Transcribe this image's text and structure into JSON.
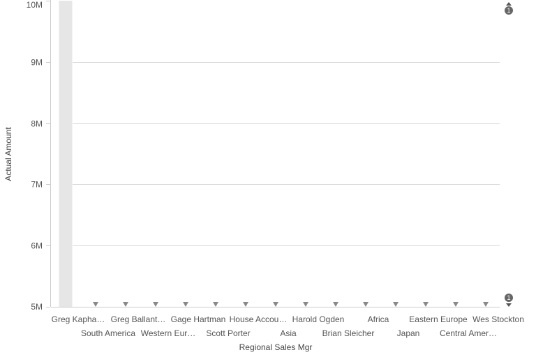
{
  "chart_data": {
    "type": "bar",
    "title": "",
    "xlabel": "Regional Sales Mgr",
    "ylabel": "Actual Amount",
    "ylim": [
      5000000,
      10000000
    ],
    "yticks": [
      {
        "value": 5000000,
        "label": "5M"
      },
      {
        "value": 6000000,
        "label": "6M"
      },
      {
        "value": 7000000,
        "label": "7M"
      },
      {
        "value": 8000000,
        "label": "8M"
      },
      {
        "value": 9000000,
        "label": "9M"
      },
      {
        "value": 10000000,
        "label": "10M"
      }
    ],
    "grid": true,
    "categories": [
      "Greg Kapha…",
      "South America",
      "Greg Ballant…",
      "Western Eur…",
      "Gage Hartman",
      "Scott Porter",
      "House Accou…",
      "Asia",
      "Harold Ogden",
      "Brian Sleicher",
      "Africa",
      "Japan",
      "Eastern Europe",
      "Central Amer…",
      "Wes Stockton"
    ],
    "values": [
      10000000,
      5000000,
      5000000,
      5000000,
      5000000,
      5000000,
      5000000,
      5000000,
      5000000,
      5000000,
      5000000,
      5000000,
      5000000,
      5000000,
      5000000
    ],
    "bar_color": "#e6e6e6",
    "below_range_marker_color": "#888888",
    "scroll_badges": {
      "top": "1",
      "bottom": "1"
    }
  }
}
